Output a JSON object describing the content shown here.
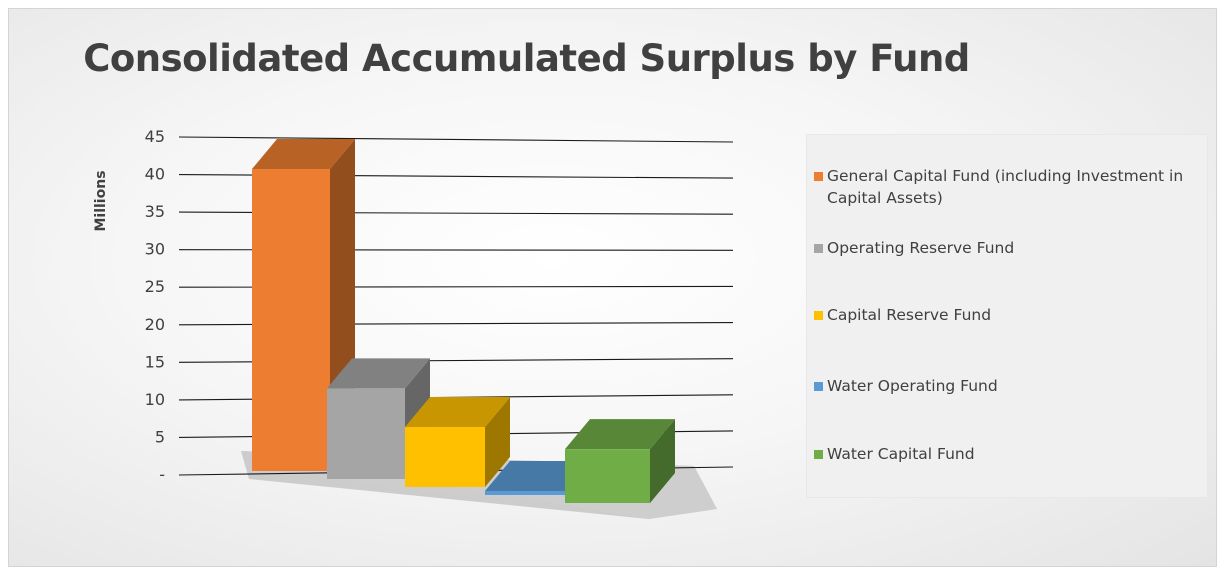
{
  "chart_data": {
    "type": "bar",
    "title": "Consolidated Accumulated Surplus by Fund",
    "ylabel": "Millions",
    "xlabel": "",
    "ylim": [
      0,
      45
    ],
    "yticks": [
      {
        "value": 0,
        "label": "-"
      },
      {
        "value": 5,
        "label": "5"
      },
      {
        "value": 10,
        "label": "10"
      },
      {
        "value": 15,
        "label": "15"
      },
      {
        "value": 20,
        "label": "20"
      },
      {
        "value": 25,
        "label": "25"
      },
      {
        "value": 30,
        "label": "30"
      },
      {
        "value": 35,
        "label": "35"
      },
      {
        "value": 40,
        "label": "40"
      },
      {
        "value": 45,
        "label": "45"
      }
    ],
    "grid": true,
    "legend_position": "right",
    "style": "3d-column",
    "series": [
      {
        "name": "General Capital Fund (including Investment in Capital Assets)",
        "value": 44.3,
        "color": "#ED7D31"
      },
      {
        "name": "Operating Reserve Fund",
        "value": 13.3,
        "color": "#A5A5A5"
      },
      {
        "name": "Capital Reserve Fund",
        "value": 8.8,
        "color": "#FFC000"
      },
      {
        "name": "Water Operating Fund",
        "value": 0.3,
        "color": "#5B9BD5"
      },
      {
        "name": "Water Capital Fund",
        "value": 7.9,
        "color": "#70AD47"
      }
    ]
  }
}
